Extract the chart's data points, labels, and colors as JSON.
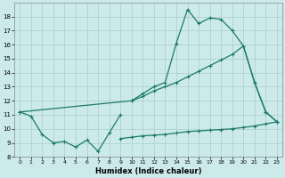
{
  "xlabel": "Humidex (Indice chaleur)",
  "background_color": "#cceaea",
  "grid_color": "#aacccc",
  "line_color": "#1a7a6a",
  "xlim": [
    -0.5,
    23.5
  ],
  "ylim": [
    8.0,
    19.0
  ],
  "xticks": [
    0,
    1,
    2,
    3,
    4,
    5,
    6,
    7,
    8,
    9,
    10,
    11,
    12,
    13,
    14,
    15,
    16,
    17,
    18,
    19,
    20,
    21,
    22,
    23
  ],
  "yticks": [
    8,
    9,
    10,
    11,
    12,
    13,
    14,
    15,
    16,
    17,
    18
  ],
  "zigzag_x": [
    0,
    1,
    2,
    3,
    4,
    5,
    6,
    7,
    8,
    9
  ],
  "zigzag_y": [
    11.2,
    10.9,
    9.6,
    9.0,
    9.1,
    8.7,
    9.2,
    8.4,
    9.7,
    11.0
  ],
  "diagonal_x": [
    0,
    10,
    11,
    12,
    13,
    14,
    15,
    16,
    17,
    18,
    19,
    20,
    21,
    22,
    23
  ],
  "diagonal_y": [
    11.2,
    12.0,
    12.3,
    12.7,
    13.0,
    13.3,
    13.7,
    14.1,
    14.5,
    14.9,
    15.3,
    15.9,
    13.3,
    11.2,
    10.5
  ],
  "upper_x": [
    10,
    11,
    12,
    13,
    14,
    15,
    16,
    17,
    18,
    19,
    20,
    21,
    22,
    23
  ],
  "upper_y": [
    12.0,
    12.5,
    13.0,
    13.3,
    16.1,
    18.5,
    17.5,
    17.9,
    17.8,
    17.0,
    15.9,
    13.3,
    11.2,
    10.5
  ],
  "bottom_x": [
    9,
    10,
    11,
    12,
    13,
    14,
    15,
    16,
    17,
    18,
    19,
    20,
    21,
    22,
    23
  ],
  "bottom_y": [
    9.3,
    9.4,
    9.5,
    9.55,
    9.6,
    9.7,
    9.8,
    9.85,
    9.9,
    9.95,
    10.0,
    10.1,
    10.2,
    10.35,
    10.5
  ]
}
